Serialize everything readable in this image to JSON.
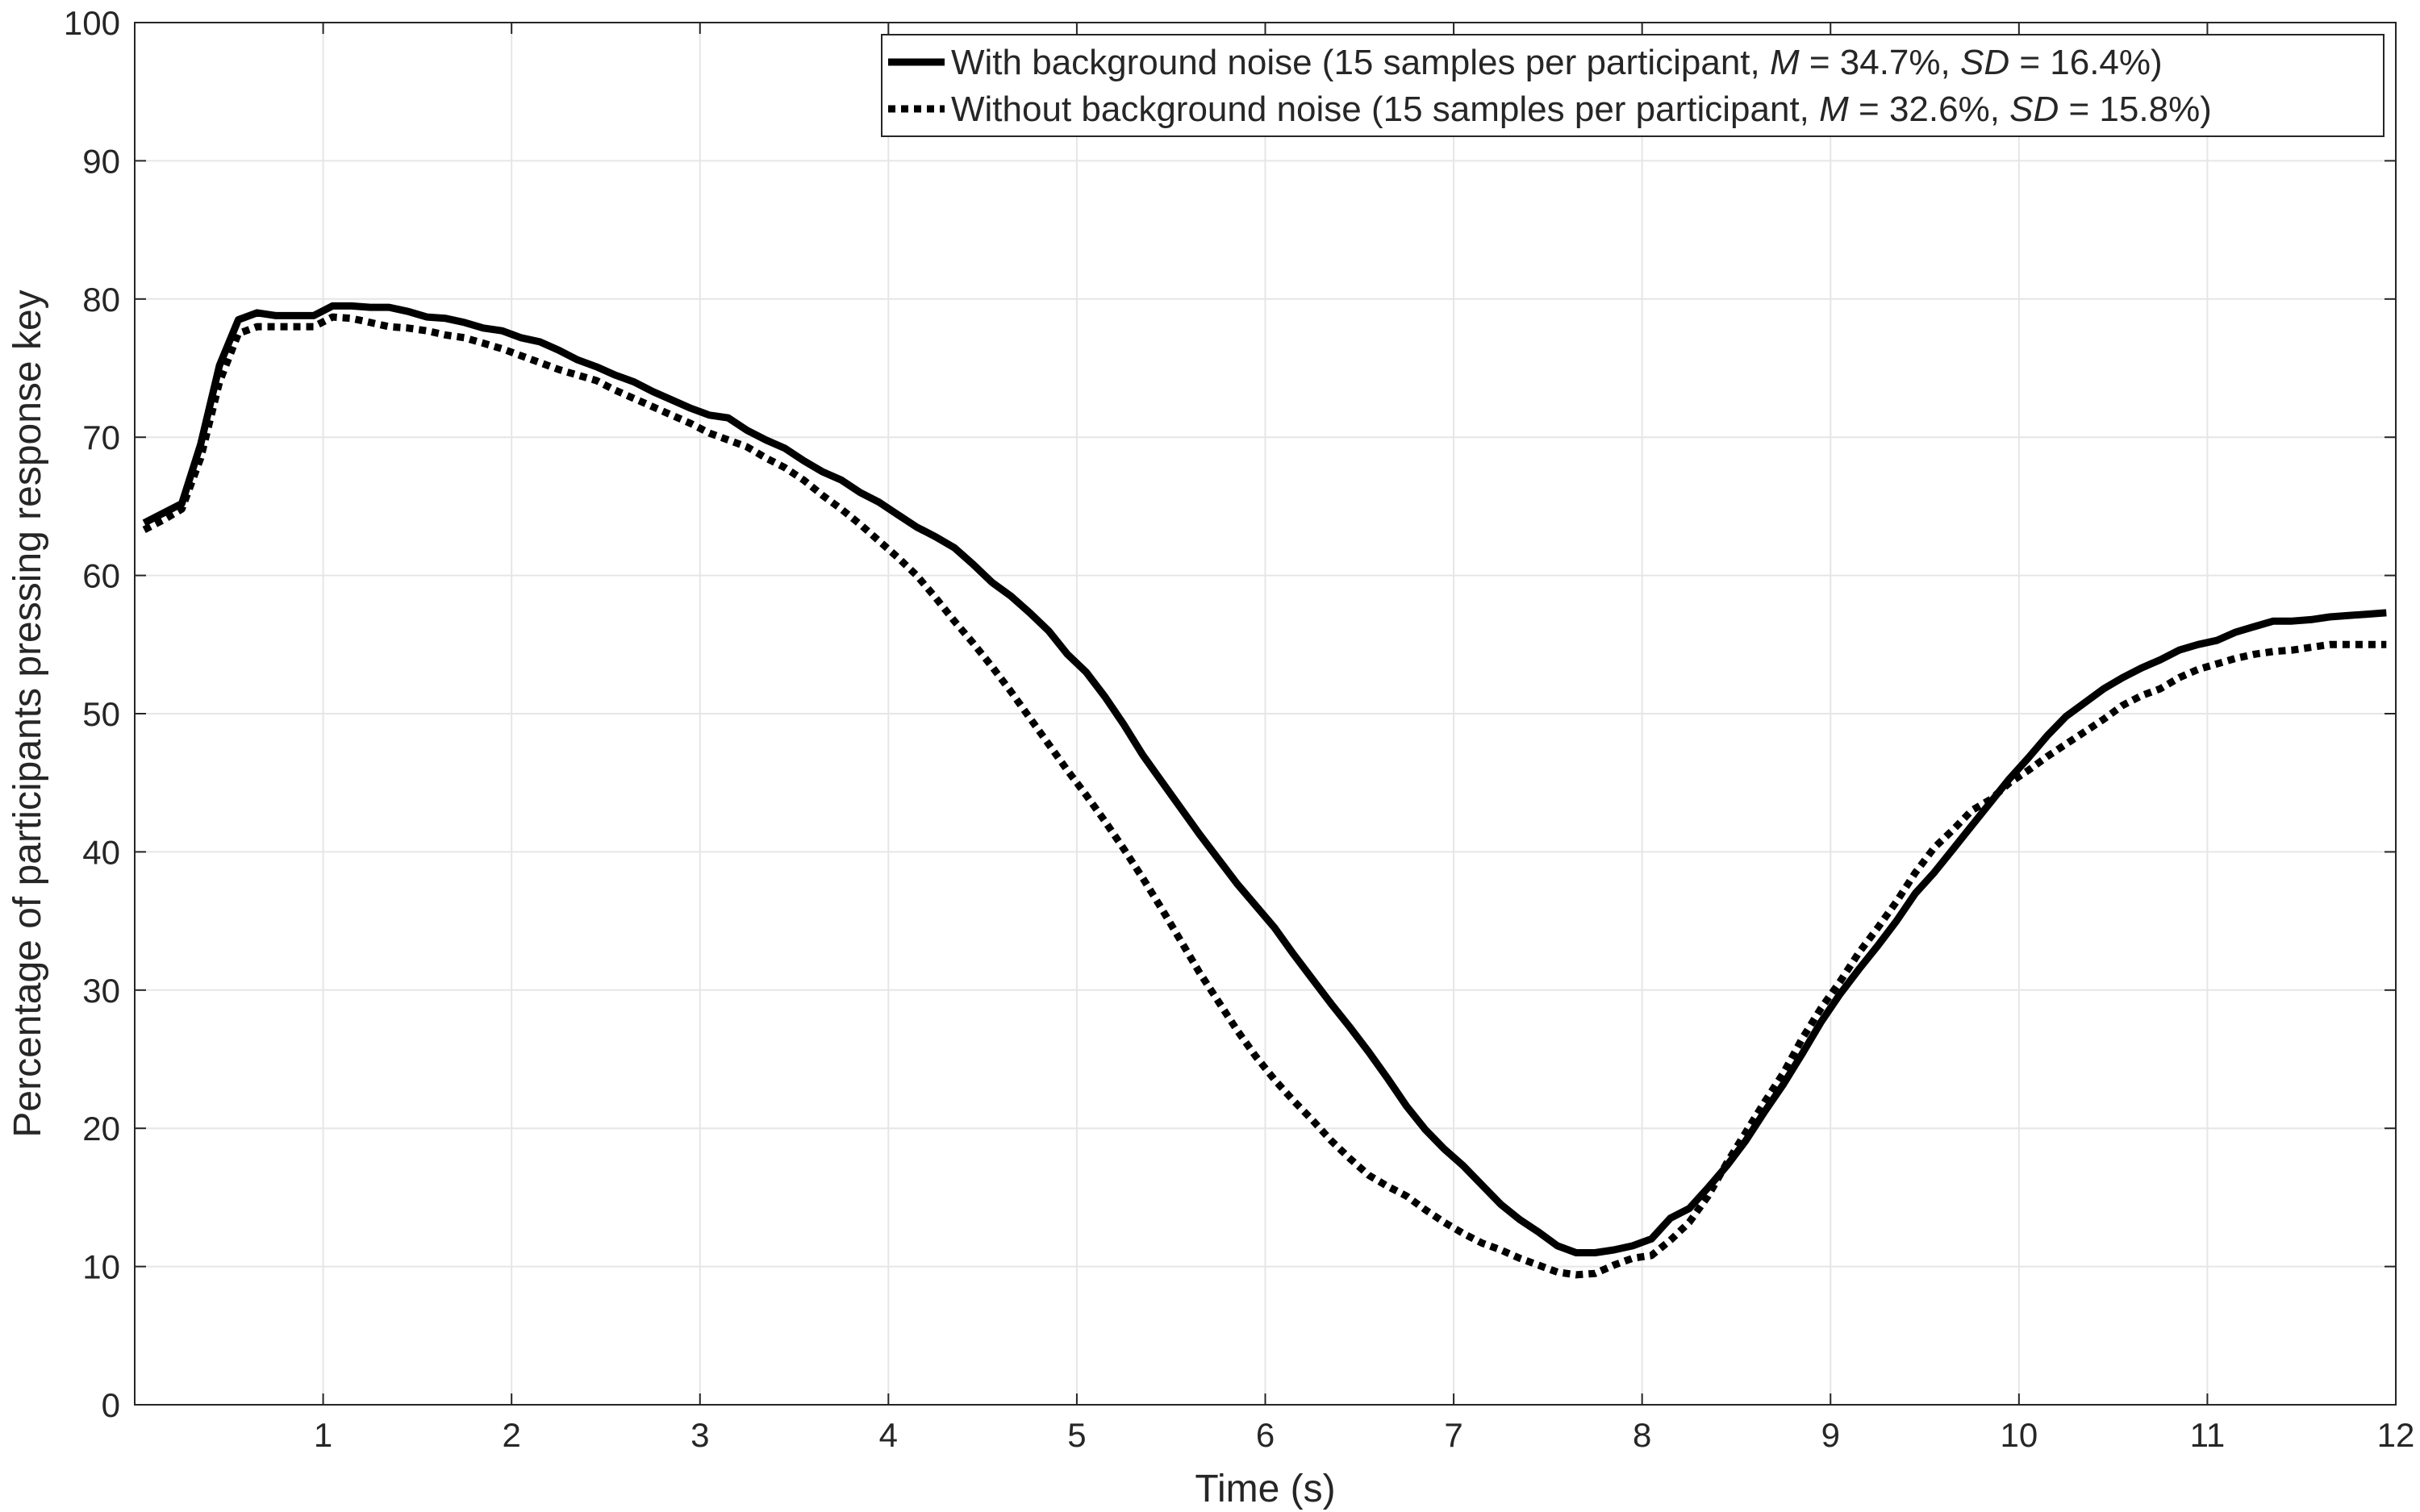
{
  "chart_data": {
    "type": "line",
    "title": "",
    "xlabel": "Time (s)",
    "ylabel": "Percentage of participants pressing response key",
    "xlim": [
      0,
      12
    ],
    "ylim": [
      0,
      100
    ],
    "x_ticks": [
      1,
      2,
      3,
      4,
      5,
      6,
      7,
      8,
      9,
      10,
      11,
      12
    ],
    "y_ticks": [
      0,
      10,
      20,
      30,
      40,
      50,
      60,
      70,
      80,
      90,
      100
    ],
    "grid": true,
    "legend_position": "top-right",
    "series": [
      {
        "name": "With background noise (15 samples per participant, M = 34.7%, SD = 16.4%)",
        "legend_parts": [
          {
            "text": "With background noise (15 samples per participant, ",
            "italic": false
          },
          {
            "text": "M",
            "italic": true
          },
          {
            "text": " = 34.7%, ",
            "italic": false
          },
          {
            "text": "SD",
            "italic": true
          },
          {
            "text": " = 16.4%)",
            "italic": false
          }
        ],
        "style": "solid",
        "color": "#000000",
        "x": [
          0.05,
          0.15,
          0.25,
          0.35,
          0.45,
          0.55,
          0.65,
          0.75,
          0.85,
          0.95,
          1.05,
          1.15,
          1.25,
          1.35,
          1.45,
          1.55,
          1.65,
          1.75,
          1.85,
          1.95,
          2.05,
          2.15,
          2.25,
          2.35,
          2.45,
          2.55,
          2.65,
          2.75,
          2.85,
          2.95,
          3.05,
          3.15,
          3.25,
          3.35,
          3.45,
          3.55,
          3.65,
          3.75,
          3.85,
          3.95,
          4.05,
          4.15,
          4.25,
          4.35,
          4.45,
          4.55,
          4.65,
          4.75,
          4.85,
          4.95,
          5.05,
          5.15,
          5.25,
          5.35,
          5.45,
          5.55,
          5.65,
          5.75,
          5.85,
          5.95,
          6.05,
          6.15,
          6.25,
          6.35,
          6.45,
          6.55,
          6.65,
          6.75,
          6.85,
          6.95,
          7.05,
          7.15,
          7.25,
          7.35,
          7.45,
          7.55,
          7.65,
          7.75,
          7.85,
          7.95,
          8.05,
          8.15,
          8.25,
          8.35,
          8.45,
          8.55,
          8.65,
          8.75,
          8.85,
          8.95,
          9.05,
          9.15,
          9.25,
          9.35,
          9.45,
          9.55,
          9.65,
          9.75,
          9.85,
          9.95,
          10.05,
          10.15,
          10.25,
          10.35,
          10.45,
          10.55,
          10.65,
          10.75,
          10.85,
          10.95,
          11.05,
          11.15,
          11.25,
          11.35,
          11.45,
          11.55,
          11.65,
          11.75,
          11.85,
          11.95
        ],
        "y": [
          63.8,
          64.5,
          65.2,
          69.5,
          75.2,
          78.5,
          79.0,
          78.8,
          78.8,
          78.8,
          79.5,
          79.5,
          79.4,
          79.4,
          79.1,
          78.7,
          78.6,
          78.3,
          77.9,
          77.7,
          77.2,
          76.9,
          76.3,
          75.6,
          75.1,
          74.5,
          74.0,
          73.3,
          72.7,
          72.1,
          71.6,
          71.4,
          70.5,
          69.8,
          69.2,
          68.3,
          67.5,
          66.9,
          66.0,
          65.3,
          64.4,
          63.5,
          62.8,
          62.0,
          60.8,
          59.5,
          58.5,
          57.3,
          56.0,
          54.3,
          53.0,
          51.2,
          49.2,
          47.0,
          45.1,
          43.2,
          41.3,
          39.5,
          37.7,
          36.1,
          34.5,
          32.6,
          30.8,
          29.0,
          27.3,
          25.5,
          23.6,
          21.6,
          19.9,
          18.5,
          17.3,
          15.9,
          14.5,
          13.4,
          12.5,
          11.5,
          11.0,
          11.0,
          11.2,
          11.5,
          12.0,
          13.5,
          14.2,
          15.7,
          17.3,
          19.1,
          21.2,
          23.2,
          25.4,
          27.7,
          29.7,
          31.5,
          33.2,
          35.0,
          37.0,
          38.5,
          40.2,
          41.9,
          43.6,
          45.3,
          46.8,
          48.4,
          49.8,
          50.8,
          51.8,
          52.6,
          53.3,
          53.9,
          54.6,
          55.0,
          55.3,
          55.9,
          56.3,
          56.7,
          56.7,
          56.8,
          57.0,
          57.1,
          57.2,
          57.3
        ]
      },
      {
        "name": "Without background noise (15 samples per participant, M = 32.6%, SD = 15.8%)",
        "legend_parts": [
          {
            "text": "Without background noise (15 samples per participant, ",
            "italic": false
          },
          {
            "text": "M",
            "italic": true
          },
          {
            "text": " = 32.6%, ",
            "italic": false
          },
          {
            "text": "SD",
            "italic": true
          },
          {
            "text": " = 15.8%)",
            "italic": false
          }
        ],
        "style": "dotted",
        "color": "#000000",
        "x": [
          0.05,
          0.15,
          0.25,
          0.35,
          0.45,
          0.55,
          0.65,
          0.75,
          0.85,
          0.95,
          1.05,
          1.15,
          1.25,
          1.35,
          1.45,
          1.55,
          1.65,
          1.75,
          1.85,
          1.95,
          2.05,
          2.15,
          2.25,
          2.35,
          2.45,
          2.55,
          2.65,
          2.75,
          2.85,
          2.95,
          3.05,
          3.15,
          3.25,
          3.35,
          3.45,
          3.55,
          3.65,
          3.75,
          3.85,
          3.95,
          4.05,
          4.15,
          4.25,
          4.35,
          4.45,
          4.55,
          4.65,
          4.75,
          4.85,
          4.95,
          5.05,
          5.15,
          5.25,
          5.35,
          5.45,
          5.55,
          5.65,
          5.75,
          5.85,
          5.95,
          6.05,
          6.15,
          6.25,
          6.35,
          6.45,
          6.55,
          6.65,
          6.75,
          6.85,
          6.95,
          7.05,
          7.15,
          7.25,
          7.35,
          7.45,
          7.55,
          7.65,
          7.75,
          7.85,
          7.95,
          8.05,
          8.15,
          8.25,
          8.35,
          8.45,
          8.55,
          8.65,
          8.75,
          8.85,
          8.95,
          9.05,
          9.15,
          9.25,
          9.35,
          9.45,
          9.55,
          9.65,
          9.75,
          9.85,
          9.95,
          10.05,
          10.15,
          10.25,
          10.35,
          10.45,
          10.55,
          10.65,
          10.75,
          10.85,
          10.95,
          11.05,
          11.15,
          11.25,
          11.35,
          11.45,
          11.55,
          11.65,
          11.75,
          11.85,
          11.95
        ],
        "y": [
          63.3,
          64.0,
          64.8,
          68.5,
          74.0,
          77.5,
          78.0,
          78.0,
          78.0,
          78.0,
          78.7,
          78.6,
          78.3,
          78.0,
          77.9,
          77.7,
          77.4,
          77.2,
          76.8,
          76.4,
          75.9,
          75.4,
          74.9,
          74.5,
          74.1,
          73.4,
          72.8,
          72.2,
          71.6,
          71.0,
          70.3,
          69.8,
          69.3,
          68.5,
          67.8,
          66.9,
          65.8,
          64.8,
          63.7,
          62.5,
          61.3,
          60.0,
          58.4,
          56.7,
          55.1,
          53.4,
          51.6,
          49.7,
          47.8,
          45.9,
          44.1,
          42.2,
          40.2,
          38.1,
          35.9,
          33.6,
          31.3,
          29.2,
          27.1,
          25.2,
          23.5,
          22.0,
          20.6,
          19.1,
          17.8,
          16.6,
          15.8,
          15.1,
          14.1,
          13.2,
          12.4,
          11.7,
          11.2,
          10.6,
          10.1,
          9.6,
          9.4,
          9.5,
          10.1,
          10.6,
          10.8,
          11.9,
          13.2,
          15.1,
          17.5,
          19.7,
          21.9,
          24.0,
          26.5,
          28.7,
          30.6,
          32.7,
          34.5,
          36.4,
          38.5,
          40.3,
          41.6,
          43.0,
          43.8,
          45.0,
          45.9,
          46.9,
          47.8,
          48.7,
          49.6,
          50.6,
          51.3,
          51.8,
          52.6,
          53.2,
          53.6,
          54.0,
          54.3,
          54.5,
          54.6,
          54.8,
          55.0,
          55.0,
          55.0,
          55.0
        ]
      }
    ]
  }
}
